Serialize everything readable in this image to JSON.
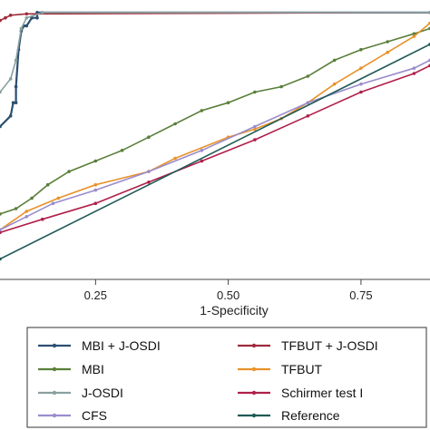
{
  "chart_data": {
    "type": "line",
    "title": "",
    "xlabel": "1-Specificity",
    "ylabel": "",
    "xlim": [
      0.07,
      0.88
    ],
    "ylim": [
      0.0,
      1.02
    ],
    "x_ticks": [
      0.25,
      0.5,
      0.75
    ],
    "x_tick_labels": [
      "0.25",
      "0.50",
      "0.75"
    ],
    "grid": false,
    "legend_position": "bottom",
    "series": [
      {
        "name": "MBI + J-OSDI",
        "color": "#2b4f70",
        "points": [
          [
            0.07,
            0.57
          ],
          [
            0.09,
            0.61
          ],
          [
            0.095,
            0.66
          ],
          [
            0.1,
            0.66
          ],
          [
            0.1,
            0.72
          ],
          [
            0.105,
            0.86
          ],
          [
            0.11,
            0.93
          ],
          [
            0.115,
            0.95
          ],
          [
            0.12,
            0.95
          ],
          [
            0.13,
            0.98
          ],
          [
            0.14,
            0.98
          ],
          [
            0.14,
            1.0
          ],
          [
            0.88,
            1.0
          ]
        ]
      },
      {
        "name": "TFBUT + J-OSDI",
        "color": "#9e2a3a",
        "points": [
          [
            0.07,
            0.97
          ],
          [
            0.08,
            0.98
          ],
          [
            0.09,
            0.99
          ],
          [
            0.12,
            0.995
          ],
          [
            0.88,
            1.0
          ]
        ]
      },
      {
        "name": "MBI",
        "color": "#5a7f3a",
        "points": [
          [
            0.07,
            0.24
          ],
          [
            0.1,
            0.26
          ],
          [
            0.13,
            0.3
          ],
          [
            0.16,
            0.35
          ],
          [
            0.2,
            0.4
          ],
          [
            0.25,
            0.44
          ],
          [
            0.3,
            0.48
          ],
          [
            0.35,
            0.53
          ],
          [
            0.4,
            0.58
          ],
          [
            0.45,
            0.63
          ],
          [
            0.5,
            0.66
          ],
          [
            0.55,
            0.7
          ],
          [
            0.6,
            0.72
          ],
          [
            0.65,
            0.76
          ],
          [
            0.7,
            0.82
          ],
          [
            0.75,
            0.86
          ],
          [
            0.8,
            0.89
          ],
          [
            0.85,
            0.92
          ],
          [
            0.88,
            0.94
          ]
        ]
      },
      {
        "name": "TFBUT",
        "color": "#e8922a",
        "points": [
          [
            0.07,
            0.18
          ],
          [
            0.12,
            0.25
          ],
          [
            0.18,
            0.3
          ],
          [
            0.25,
            0.35
          ],
          [
            0.35,
            0.4
          ],
          [
            0.4,
            0.45
          ],
          [
            0.5,
            0.53
          ],
          [
            0.55,
            0.56
          ],
          [
            0.6,
            0.6
          ],
          [
            0.65,
            0.66
          ],
          [
            0.7,
            0.73
          ],
          [
            0.75,
            0.79
          ],
          [
            0.8,
            0.85
          ],
          [
            0.85,
            0.91
          ],
          [
            0.88,
            0.96
          ]
        ]
      },
      {
        "name": "J-OSDI",
        "color": "#8aa0a0",
        "points": [
          [
            0.07,
            0.7
          ],
          [
            0.09,
            0.75
          ],
          [
            0.1,
            0.82
          ],
          [
            0.11,
            0.94
          ],
          [
            0.12,
            0.98
          ],
          [
            0.15,
            1.0
          ],
          [
            0.88,
            1.0
          ]
        ]
      },
      {
        "name": "Schirmer test I",
        "color": "#b0204a",
        "points": [
          [
            0.07,
            0.17
          ],
          [
            0.15,
            0.22
          ],
          [
            0.25,
            0.28
          ],
          [
            0.35,
            0.36
          ],
          [
            0.45,
            0.44
          ],
          [
            0.55,
            0.52
          ],
          [
            0.65,
            0.61
          ],
          [
            0.75,
            0.7
          ],
          [
            0.85,
            0.77
          ],
          [
            0.88,
            0.8
          ]
        ]
      },
      {
        "name": "CFS",
        "color": "#9a8ccc",
        "points": [
          [
            0.07,
            0.18
          ],
          [
            0.12,
            0.23
          ],
          [
            0.17,
            0.28
          ],
          [
            0.25,
            0.33
          ],
          [
            0.35,
            0.4
          ],
          [
            0.45,
            0.48
          ],
          [
            0.55,
            0.57
          ],
          [
            0.65,
            0.66
          ],
          [
            0.75,
            0.73
          ],
          [
            0.85,
            0.79
          ],
          [
            0.88,
            0.82
          ]
        ]
      },
      {
        "name": "Reference",
        "color": "#1f5a56",
        "points": [
          [
            0.07,
            0.07
          ],
          [
            0.88,
            0.88
          ]
        ]
      }
    ]
  }
}
